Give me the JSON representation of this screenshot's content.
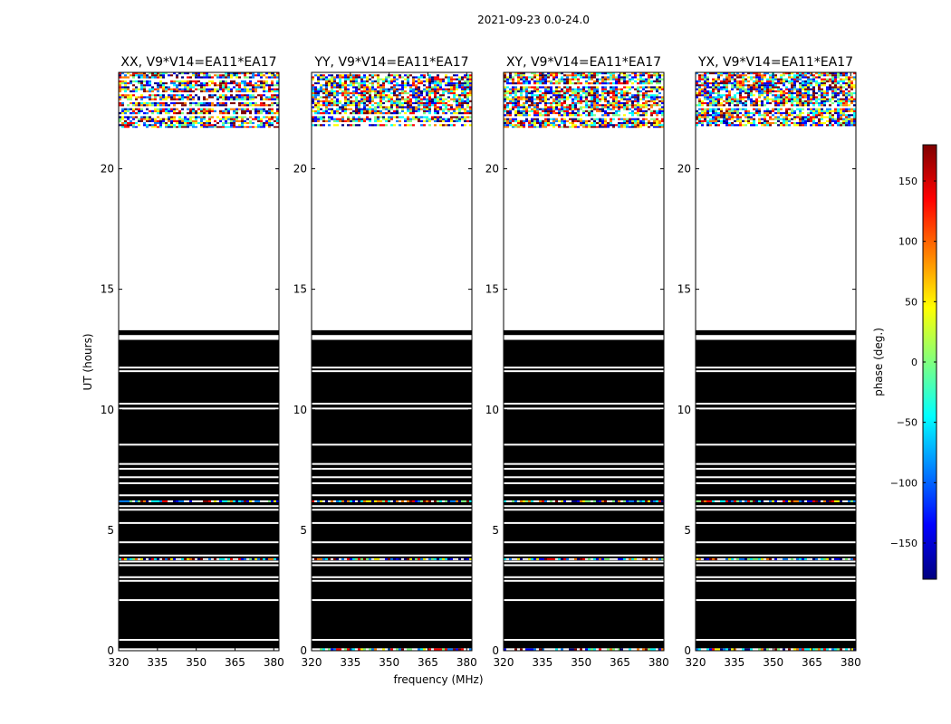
{
  "chart_data": {
    "type": "heatmap",
    "suptitle": "2021-09-23 0.0-24.0",
    "xlabel": "frequency (MHz)",
    "ylabel": "UT (hours)",
    "xlim": [
      320,
      382
    ],
    "ylim": [
      0,
      24
    ],
    "xticks": [
      320,
      335,
      350,
      365,
      380
    ],
    "yticks": [
      0,
      5,
      10,
      15,
      20
    ],
    "panels": [
      {
        "title": "XX, V9*V14=EA11*EA17",
        "pol": "XX"
      },
      {
        "title": "YY, V9*V14=EA11*EA17",
        "pol": "YY"
      },
      {
        "title": "XY, V9*V14=EA11*EA17",
        "pol": "XY"
      },
      {
        "title": "YX, V9*V14=EA11*EA17",
        "pol": "YX"
      }
    ],
    "bands": [
      {
        "from": 0.0,
        "to": 0.1,
        "fill": "noise"
      },
      {
        "from": 0.1,
        "to": 12.9,
        "fill": "#000000"
      },
      {
        "from": 13.1,
        "to": 13.3,
        "fill": "#000000"
      },
      {
        "from": 21.7,
        "to": 24.0,
        "fill": "noise"
      }
    ],
    "gaps_hours": [
      0.45,
      2.1,
      2.9,
      3.05,
      3.55,
      3.7,
      3.95,
      4.5,
      5.3,
      5.85,
      6.0,
      6.45,
      6.95,
      7.2,
      7.55,
      7.75,
      8.55,
      10.05,
      10.25,
      11.6,
      11.75
    ],
    "noise_line_hours": [
      6.2,
      3.8
    ],
    "colorbar": {
      "label": "phase (deg.)",
      "range": [
        -180,
        180
      ],
      "ticks": [
        150,
        100,
        50,
        0,
        -50,
        -100,
        -150
      ],
      "tick_labels": [
        "150",
        "100",
        "50",
        "0",
        "−50",
        "−100",
        "−150"
      ],
      "colormap": [
        "#00007f",
        "#0000ff",
        "#007fff",
        "#00ffff",
        "#7fff7f",
        "#ffff00",
        "#ff7f00",
        "#ff0000",
        "#7f0000"
      ]
    }
  }
}
